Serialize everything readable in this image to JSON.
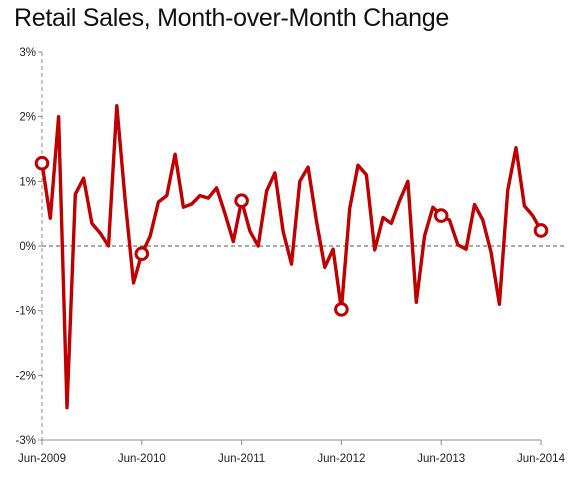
{
  "chart_data": {
    "type": "line",
    "title": "Retail Sales, Month-over-Month  Change",
    "xlabel": "",
    "ylabel": "",
    "ylim": [
      -3,
      3
    ],
    "yticks": [
      3,
      2,
      1,
      0,
      -1,
      -2,
      -3
    ],
    "ytick_labels": [
      "3%",
      "2%",
      "1%",
      "0%",
      "-1%",
      "-2%",
      "-3%"
    ],
    "xlim": [
      0,
      60
    ],
    "xticks": [
      0,
      12,
      24,
      36,
      48,
      60
    ],
    "xtick_labels": [
      "Jun-2009",
      "Jun-2010",
      "Jun-2011",
      "Jun-2012",
      "Jun-2013",
      "Jun-2014"
    ],
    "grid": false,
    "legend": "none",
    "zero_line": "dashed",
    "series": [
      {
        "color": "#c00000",
        "marker_every": 12,
        "marker_offset": 0,
        "x": [
          0,
          1,
          2,
          3,
          4,
          5,
          6,
          7,
          8,
          9,
          10,
          11,
          12,
          13,
          14,
          15,
          16,
          17,
          18,
          19,
          20,
          21,
          22,
          23,
          24,
          25,
          26,
          27,
          28,
          29,
          30,
          31,
          32,
          33,
          34,
          35,
          36,
          37,
          38,
          39,
          40,
          41,
          42,
          43,
          44,
          45,
          46,
          47,
          48,
          49,
          50,
          51,
          52,
          53,
          54,
          55,
          56,
          57,
          58,
          59,
          60
        ],
        "values": [
          1.28,
          0.43,
          2.0,
          -2.5,
          0.8,
          1.05,
          0.35,
          0.2,
          0.0,
          2.17,
          0.7,
          -0.57,
          -0.12,
          0.15,
          0.68,
          0.78,
          1.42,
          0.6,
          0.65,
          0.78,
          0.74,
          0.9,
          0.5,
          0.07,
          0.7,
          0.23,
          0.0,
          0.85,
          1.13,
          0.22,
          -0.28,
          1.0,
          1.22,
          0.38,
          -0.33,
          -0.05,
          -0.98,
          0.58,
          1.25,
          1.1,
          -0.06,
          0.44,
          0.35,
          0.7,
          1.0,
          -0.87,
          0.16,
          0.6,
          0.47,
          0.4,
          0.02,
          -0.05,
          0.64,
          0.4,
          -0.1,
          -0.9,
          0.86,
          1.52,
          0.62,
          0.47,
          0.24
        ]
      }
    ]
  }
}
